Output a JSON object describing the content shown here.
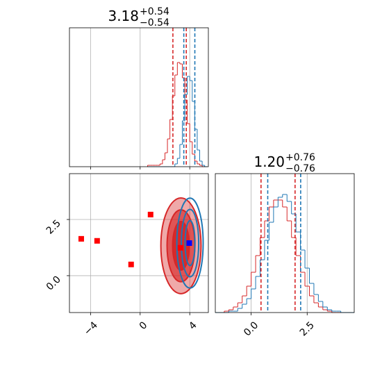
{
  "chart_data": [
    {
      "type": "histogram",
      "title": {
        "value": "3.18",
        "plus": "+0.54",
        "minus": "−0.54"
      },
      "bins": [
        0.6,
        0.8,
        1.0,
        1.2,
        1.4,
        1.6,
        1.8,
        2.0,
        2.2,
        2.4,
        2.6,
        2.8,
        3.0,
        3.2,
        3.4,
        3.6,
        3.8,
        4.0,
        4.2,
        4.4,
        4.6,
        4.8,
        5.0,
        5.2,
        5.4
      ],
      "series": [
        {
          "color": "#d62728",
          "values": [
            0.01,
            0.01,
            0.01,
            0.01,
            0.01,
            0.02,
            0.05,
            0.1,
            0.2,
            0.34,
            0.51,
            0.66,
            0.75,
            0.74,
            0.64,
            0.48,
            0.31,
            0.18,
            0.09,
            0.04,
            0.02,
            0.01,
            0,
            0
          ],
          "quantiles": [
            2.64,
            3.72
          ]
        },
        {
          "color": "#1f77b4",
          "values": [
            0,
            0,
            0,
            0,
            0,
            0,
            0,
            0,
            0,
            0,
            0,
            0.02,
            0.06,
            0.16,
            0.33,
            0.52,
            0.65,
            0.62,
            0.47,
            0.27,
            0.12,
            0.04,
            0.01,
            0
          ],
          "quantiles": [
            3.52,
            4.41
          ]
        }
      ],
      "xlim": [
        -5.7,
        5.5
      ],
      "ylim": [
        0,
        1
      ],
      "xticks": [
        {
          "value": -4,
          "label": "−4"
        },
        0,
        4
      ],
      "show_xtick_labels": false,
      "grid": true
    },
    {
      "type": "contour",
      "series": [
        {
          "color": "#d62728",
          "filled": true,
          "center": [
            3.29,
            1.33
          ],
          "radii": [
            [
              1.62,
              2.13
            ],
            [
              1.12,
              1.6
            ],
            [
              0.67,
              1.08
            ]
          ],
          "markers_x": [
            0.84,
            -4.75,
            -3.47,
            -0.73,
            3.24
          ],
          "markers_y": [
            2.72,
            1.64,
            1.55,
            0.5,
            1.24
          ]
        },
        {
          "color": "#1f77b4",
          "filled": false,
          "center": [
            4.02,
            1.45
          ],
          "radii": [
            [
              1.06,
              2.0
            ],
            [
              0.7,
              1.5
            ],
            [
              0.4,
              1.0
            ]
          ],
          "markers_x": [
            3.96
          ],
          "markers_y": [
            1.45
          ]
        }
      ],
      "xlim": [
        -5.7,
        5.5
      ],
      "ylim": [
        -1.64,
        4.54
      ],
      "xticks": [
        {
          "value": -4,
          "label": "−4"
        },
        0,
        4
      ],
      "yticks": [
        {
          "value": 0,
          "label": "0.0"
        },
        2.5
      ],
      "grid": true
    },
    {
      "type": "histogram",
      "title": {
        "value": "1.20",
        "plus": "+0.76",
        "minus": "−0.76"
      },
      "bins": [
        -1.6,
        -1.4,
        -1.2,
        -1.0,
        -0.8,
        -0.6,
        -0.4,
        -0.2,
        0.0,
        0.2,
        0.4,
        0.6,
        0.8,
        1.0,
        1.2,
        1.4,
        1.6,
        1.8,
        2.0,
        2.2,
        2.4,
        2.6,
        2.8,
        3.0,
        3.2,
        3.4,
        3.6,
        3.8,
        4.0,
        4.2,
        4.4,
        4.6
      ],
      "series": [
        {
          "color": "#d62728",
          "values": [
            0,
            0,
            0.01,
            0.02,
            0.04,
            0.07,
            0.12,
            0.19,
            0.29,
            0.41,
            0.54,
            0.66,
            0.76,
            0.81,
            0.81,
            0.76,
            0.66,
            0.54,
            0.41,
            0.29,
            0.19,
            0.12,
            0.07,
            0.04,
            0.02,
            0.01,
            0,
            0,
            0,
            0,
            0
          ],
          "quantiles": [
            0.44,
            1.96
          ]
        },
        {
          "color": "#1f77b4",
          "values": [
            0,
            0,
            0,
            0.01,
            0.01,
            0.03,
            0.06,
            0.1,
            0.17,
            0.26,
            0.38,
            0.52,
            0.65,
            0.76,
            0.83,
            0.85,
            0.8,
            0.71,
            0.58,
            0.45,
            0.32,
            0.21,
            0.13,
            0.08,
            0.04,
            0.02,
            0.01,
            0.01,
            0,
            0,
            0
          ],
          "quantiles": [
            0.74,
            2.21
          ]
        }
      ],
      "xlim": [
        -1.6,
        4.6
      ],
      "ylim": [
        0,
        1
      ],
      "xticks": [
        {
          "value": 0,
          "label": "0.0"
        },
        2.5
      ],
      "grid": true
    }
  ]
}
